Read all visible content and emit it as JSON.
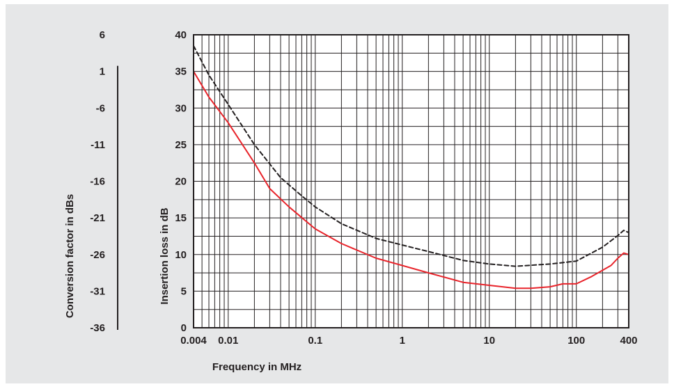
{
  "chart_data": {
    "type": "line",
    "xlabel": "Frequency in MHz",
    "ylabel": "Insertion loss in dB",
    "y2label": "Conversion factor in dBs",
    "xscale": "log",
    "xlim": [
      0.004,
      400
    ],
    "ylim": [
      0,
      40
    ],
    "grid": true,
    "x_ticks": [
      0.004,
      0.01,
      0.1,
      1,
      10,
      100,
      400
    ],
    "x_tick_labels": [
      "0.004",
      "0.01",
      "0.1",
      "1",
      "10",
      "100",
      "400"
    ],
    "y_ticks": [
      0,
      5,
      10,
      15,
      20,
      25,
      30,
      35,
      40
    ],
    "y_tick_labels": [
      "0",
      "5",
      "10",
      "15",
      "20",
      "25",
      "30",
      "35",
      "40"
    ],
    "y2_tick_labels": [
      "6",
      "1",
      "-6",
      "-11",
      "-16",
      "-21",
      "-26",
      "-31",
      "-36"
    ],
    "colors": {
      "red_series": "#e8232a",
      "dashed_series": "#231f20",
      "panel": "#e6e7e8"
    },
    "series": [
      {
        "style": "dashed",
        "color": "#231f20",
        "points": [
          [
            0.004,
            38.5
          ],
          [
            0.006,
            34.5
          ],
          [
            0.01,
            30.5
          ],
          [
            0.02,
            25
          ],
          [
            0.04,
            20.5
          ],
          [
            0.07,
            18
          ],
          [
            0.1,
            16.5
          ],
          [
            0.2,
            14.2
          ],
          [
            0.5,
            12.2
          ],
          [
            1,
            11.3
          ],
          [
            2,
            10.4
          ],
          [
            5,
            9.2
          ],
          [
            10,
            8.7
          ],
          [
            20,
            8.4
          ],
          [
            50,
            8.7
          ],
          [
            100,
            9.1
          ],
          [
            200,
            11
          ],
          [
            300,
            12.6
          ],
          [
            350,
            13.3
          ],
          [
            400,
            13
          ],
          [
            450,
            12
          ]
        ]
      },
      {
        "style": "solid",
        "color": "#e8232a",
        "points": [
          [
            0.004,
            35
          ],
          [
            0.006,
            31.5
          ],
          [
            0.01,
            28
          ],
          [
            0.02,
            22.5
          ],
          [
            0.03,
            19
          ],
          [
            0.05,
            16.5
          ],
          [
            0.1,
            13.5
          ],
          [
            0.2,
            11.5
          ],
          [
            0.5,
            9.5
          ],
          [
            1,
            8.5
          ],
          [
            2,
            7.5
          ],
          [
            5,
            6.2
          ],
          [
            10,
            5.8
          ],
          [
            20,
            5.4
          ],
          [
            30,
            5.4
          ],
          [
            50,
            5.6
          ],
          [
            70,
            6
          ],
          [
            100,
            6
          ],
          [
            150,
            7
          ],
          [
            250,
            8.5
          ],
          [
            300,
            9.5
          ],
          [
            350,
            10.2
          ],
          [
            400,
            10
          ],
          [
            450,
            9
          ]
        ]
      }
    ]
  }
}
